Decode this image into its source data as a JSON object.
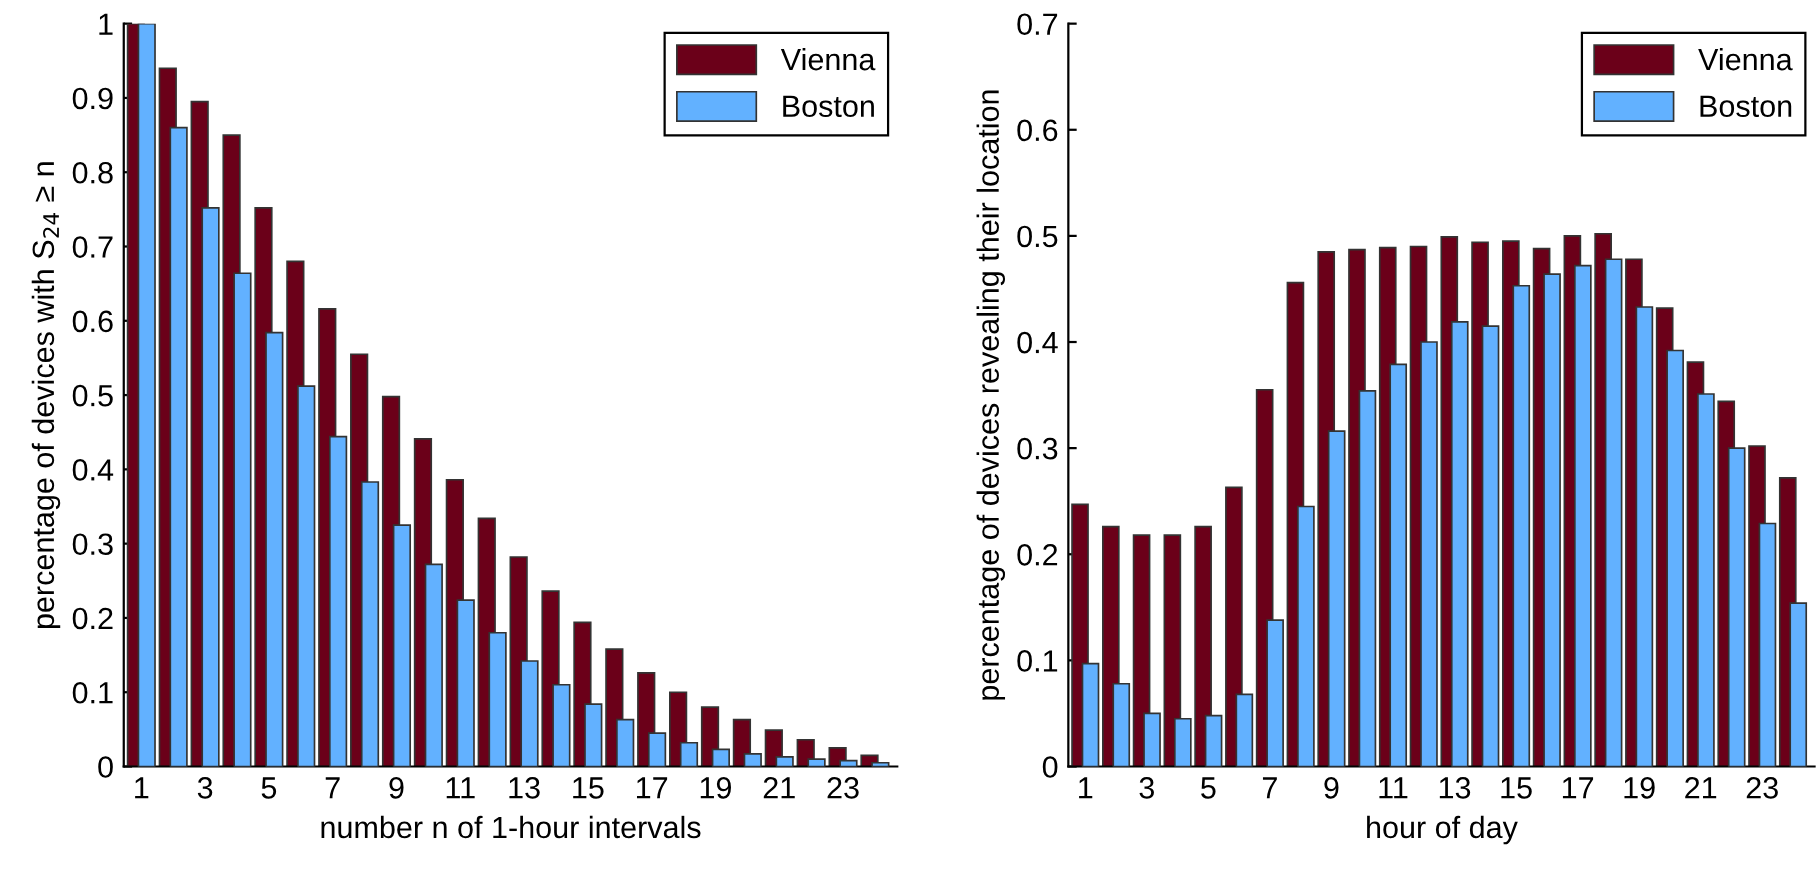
{
  "chart_data": [
    {
      "type": "bar",
      "xlabel": "number n of 1-hour intervals",
      "ylabel": "percentage of devices with S$_{24}$ ≥ n",
      "categories": [
        "1",
        null,
        "3",
        null,
        "5",
        null,
        "7",
        null,
        "9",
        null,
        "11",
        null,
        "13",
        null,
        "15",
        null,
        "17",
        null,
        "19",
        null,
        "21",
        null,
        "23",
        null
      ],
      "series": [
        {
          "name": "Vienna",
          "color": "#6b0019",
          "values": [
            1,
            0.94,
            0.895,
            0.85,
            0.752,
            0.68,
            0.616,
            0.555,
            0.498,
            0.441,
            0.386,
            0.334,
            0.282,
            0.236,
            0.194,
            0.158,
            0.126,
            0.1,
            0.08,
            0.063,
            0.049,
            0.036,
            0.025,
            0.015
          ]
        },
        {
          "name": "Boston",
          "color": "#62b1ff",
          "values": [
            1,
            0.86,
            0.752,
            0.664,
            0.584,
            0.512,
            0.444,
            0.383,
            0.325,
            0.272,
            0.224,
            0.18,
            0.142,
            0.11,
            0.084,
            0.063,
            0.045,
            0.032,
            0.023,
            0.017,
            0.013,
            0.01,
            0.008,
            0.005
          ]
        }
      ],
      "ylim": [
        0,
        1
      ],
      "yticks": [
        0,
        0.1,
        0.2,
        0.3,
        0.4,
        0.5,
        0.6,
        0.7,
        0.8,
        0.9,
        1
      ],
      "grid": false,
      "legend": "top right"
    },
    {
      "type": "bar",
      "xlabel": "hour of day",
      "ylabel": "percentage of devices revealing their location",
      "categories": [
        "1",
        null,
        "3",
        null,
        "5",
        null,
        "7",
        null,
        "9",
        null,
        "11",
        null,
        "13",
        null,
        "15",
        null,
        "17",
        null,
        "19",
        null,
        "21",
        null,
        "23",
        null
      ],
      "series": [
        {
          "name": "Vienna",
          "color": "#6b0019",
          "values": [
            0.247,
            0.226,
            0.218,
            0.218,
            0.226,
            0.263,
            0.355,
            0.456,
            0.485,
            0.487,
            0.489,
            0.49,
            0.499,
            0.494,
            0.495,
            0.488,
            0.5,
            0.502,
            0.478,
            0.432,
            0.381,
            0.344,
            0.302,
            0.272
          ]
        },
        {
          "name": "Boston",
          "color": "#62b1ff",
          "values": [
            0.097,
            0.078,
            0.05,
            0.045,
            0.048,
            0.068,
            0.138,
            0.245,
            0.316,
            0.354,
            0.379,
            0.4,
            0.419,
            0.415,
            0.453,
            0.464,
            0.472,
            0.478,
            0.433,
            0.392,
            0.351,
            0.3,
            0.229,
            0.154
          ]
        }
      ],
      "ylim": [
        0,
        0.7
      ],
      "yticks": [
        0,
        0.1,
        0.2,
        0.3,
        0.4,
        0.5,
        0.6,
        0.7
      ],
      "grid": false,
      "legend": "top right"
    }
  ]
}
